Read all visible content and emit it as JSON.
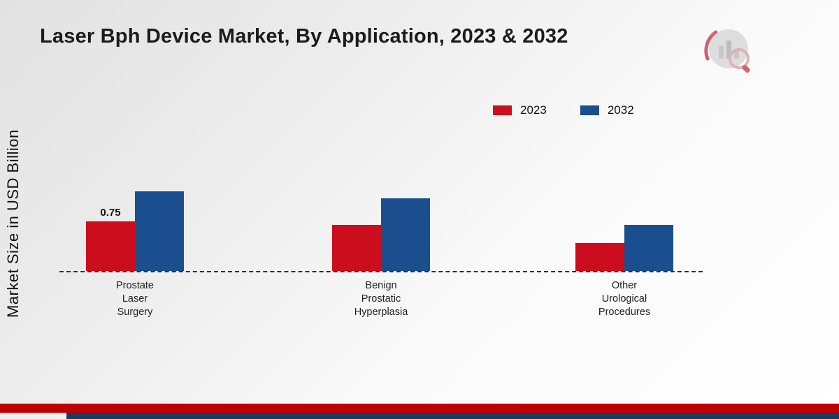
{
  "title": "Laser Bph Device Market, By Application, 2023 & 2032",
  "y_axis_label": "Market Size in USD Billion",
  "chart_data": {
    "type": "bar",
    "title": "Laser Bph Device Market, By Application, 2023 & 2032",
    "ylabel": "Market Size in USD Billion",
    "xlabel": "",
    "categories": [
      "Prostate Laser Surgery",
      "Benign Prostatic Hyperplasia",
      "Other Urological Procedures"
    ],
    "series": [
      {
        "name": "2023",
        "color": "#cc0d1d",
        "values": [
          0.75,
          0.7,
          0.42
        ]
      },
      {
        "name": "2032",
        "color": "#1a4e8e",
        "values": [
          1.2,
          1.1,
          0.7
        ]
      }
    ],
    "bar_value_labels": [
      [
        "0.75",
        "",
        ""
      ],
      [
        "",
        "",
        ""
      ]
    ],
    "ylim": [
      0,
      1.4
    ],
    "grid": false,
    "legend_position": "top-right",
    "baseline_style": "dashed"
  },
  "colors": {
    "series_2023": "#cc0d1d",
    "series_2032": "#1a4e8e",
    "footer_red": "#c00000",
    "footer_navy": "#1b3a5e",
    "baseline": "#2f2f2f"
  }
}
